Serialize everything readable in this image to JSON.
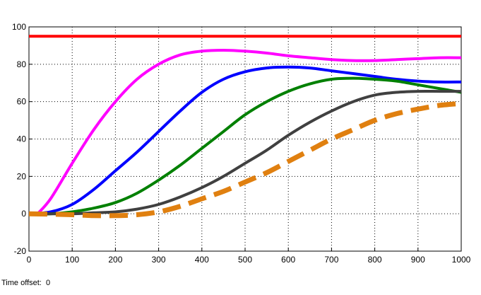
{
  "footer": {
    "time_offset_label": "Time offset:",
    "time_offset_value": "0"
  },
  "chart_data": {
    "type": "line",
    "title": "",
    "xlabel": "",
    "ylabel": "",
    "xlim": [
      0,
      1000
    ],
    "ylim": [
      -20,
      100
    ],
    "x_ticks": [
      0,
      100,
      200,
      300,
      400,
      500,
      600,
      700,
      800,
      900,
      1000
    ],
    "y_ticks": [
      -20,
      0,
      20,
      40,
      60,
      80,
      100
    ],
    "grid": true,
    "background": "#ffffff",
    "series": [
      {
        "color": "#ff0000",
        "style": "solid",
        "width": 4,
        "x": [
          0,
          1000
        ],
        "y": [
          95,
          95
        ]
      },
      {
        "color": "#ff00ff",
        "style": "solid",
        "width": 4,
        "x": [
          20,
          50,
          100,
          150,
          200,
          250,
          300,
          350,
          400,
          450,
          500,
          550,
          600,
          650,
          700,
          750,
          800,
          850,
          900,
          950,
          1000
        ],
        "y": [
          0,
          8,
          27,
          45,
          60,
          72,
          80,
          85,
          87,
          87.5,
          87,
          86,
          84.5,
          83.5,
          82.5,
          82,
          82,
          82.5,
          83,
          83.5,
          83.5
        ]
      },
      {
        "color": "#0000ff",
        "style": "solid",
        "width": 4,
        "x": [
          0,
          50,
          100,
          150,
          200,
          250,
          300,
          350,
          400,
          450,
          500,
          550,
          600,
          650,
          700,
          750,
          800,
          850,
          900,
          950,
          1000
        ],
        "y": [
          0,
          1,
          5,
          13,
          23,
          33,
          44,
          55,
          65,
          72,
          76,
          78,
          78.5,
          78,
          76.5,
          75,
          73.5,
          72,
          71,
          70.5,
          70.5
        ]
      },
      {
        "color": "#008000",
        "style": "solid",
        "width": 4,
        "x": [
          0,
          50,
          100,
          150,
          200,
          250,
          300,
          350,
          400,
          450,
          500,
          550,
          600,
          650,
          700,
          750,
          800,
          850,
          900,
          950,
          1000
        ],
        "y": [
          0,
          0,
          1,
          3,
          6,
          11,
          18,
          26,
          35,
          44,
          53,
          60,
          65.5,
          69.5,
          72,
          72.5,
          72,
          71,
          69,
          67,
          65
        ]
      },
      {
        "color": "#404040",
        "style": "solid",
        "width": 4,
        "x": [
          0,
          100,
          150,
          200,
          250,
          300,
          350,
          400,
          450,
          500,
          550,
          600,
          650,
          700,
          750,
          800,
          850,
          900,
          950,
          1000
        ],
        "y": [
          0,
          0,
          0.5,
          1,
          2.5,
          5,
          9,
          14,
          20,
          27,
          34,
          42,
          49,
          55,
          60,
          63.5,
          65,
          65.5,
          65.5,
          65.5
        ]
      },
      {
        "color": "#e08010",
        "style": "dashed",
        "width": 7,
        "x": [
          0,
          100,
          150,
          200,
          250,
          300,
          350,
          400,
          450,
          500,
          550,
          600,
          650,
          700,
          750,
          800,
          850,
          900,
          950,
          1000
        ],
        "y": [
          0,
          -0.5,
          -1,
          -1,
          -0.5,
          1,
          4,
          8,
          12,
          17,
          22,
          28,
          34,
          40,
          45,
          50,
          53.5,
          56,
          58,
          59
        ]
      }
    ]
  }
}
